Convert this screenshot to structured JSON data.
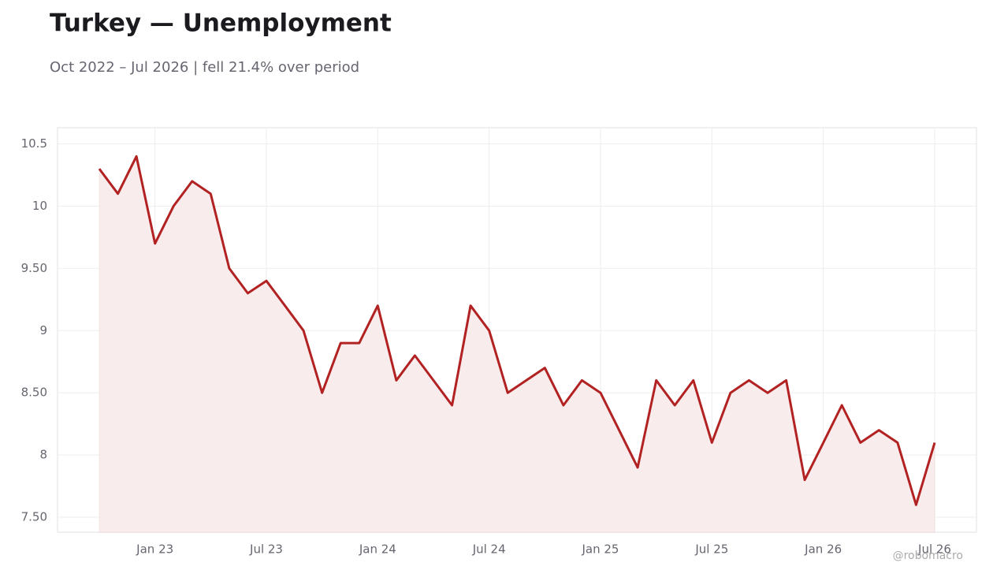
{
  "chart_data": {
    "type": "line",
    "title": "Turkey — Unemployment",
    "subtitle": "Oct 2022 – Jul 2026 | fell 21.4% over period",
    "credit": "@robomacro",
    "x": [
      "2022-10",
      "2022-11",
      "2022-12",
      "2023-01",
      "2023-02",
      "2023-03",
      "2023-04",
      "2023-05",
      "2023-06",
      "2023-07",
      "2023-08",
      "2023-09",
      "2023-10",
      "2023-11",
      "2023-12",
      "2024-01",
      "2024-02",
      "2024-03",
      "2024-04",
      "2024-05",
      "2024-06",
      "2024-07",
      "2024-08",
      "2024-09",
      "2024-10",
      "2024-11",
      "2024-12",
      "2025-01",
      "2025-02",
      "2025-03",
      "2025-04",
      "2025-05",
      "2025-06",
      "2025-07",
      "2025-08",
      "2025-09",
      "2025-10",
      "2025-11",
      "2025-12",
      "2026-01",
      "2026-02",
      "2026-03",
      "2026-04",
      "2026-05",
      "2026-06",
      "2026-07"
    ],
    "values": [
      10.3,
      10.1,
      10.4,
      9.7,
      10.0,
      10.2,
      10.1,
      9.5,
      9.3,
      9.4,
      9.2,
      9.0,
      8.5,
      8.9,
      8.9,
      9.2,
      8.6,
      8.8,
      8.6,
      8.4,
      9.2,
      9.0,
      8.5,
      8.6,
      8.7,
      8.4,
      8.6,
      8.5,
      8.2,
      7.9,
      8.6,
      8.4,
      8.6,
      8.1,
      8.5,
      8.6,
      8.5,
      8.6,
      7.8,
      8.1,
      8.4,
      8.1,
      8.2,
      8.1,
      7.6,
      8.1
    ],
    "color": "#b22222",
    "fill_color": "#f9ecec",
    "ylim": [
      7.38,
      10.63
    ],
    "yticks": [
      {
        "value": 7.5,
        "label": "7.50"
      },
      8,
      {
        "value": 8.5,
        "label": "8.50"
      },
      9,
      {
        "value": 9.5,
        "label": "9.50"
      },
      10,
      10.5
    ],
    "xticks": [
      {
        "value": "2023-01",
        "label": "Jan 23"
      },
      {
        "value": "2023-07",
        "label": "Jul 23"
      },
      {
        "value": "2024-01",
        "label": "Jan 24"
      },
      {
        "value": "2024-07",
        "label": "Jul 24"
      },
      {
        "value": "2025-01",
        "label": "Jan 25"
      },
      {
        "value": "2025-07",
        "label": "Jul 25"
      },
      {
        "value": "2026-01",
        "label": "Jan 26"
      },
      {
        "value": "2026-07",
        "label": "Jul 26"
      }
    ],
    "grid": true
  }
}
